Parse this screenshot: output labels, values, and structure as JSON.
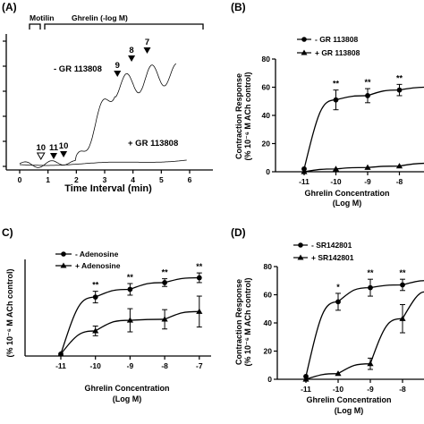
{
  "chart_data": [
    {
      "id": "A",
      "panel_label": "(A)",
      "type": "line",
      "xlabel": "Time Interval (min)",
      "x_ticks": [
        0,
        1,
        2,
        3,
        4,
        5,
        6
      ],
      "xlim": [
        -0.2,
        6.2
      ],
      "y_ticks_unlabeled": 6,
      "bar_labels": {
        "motilin": "Motilin",
        "ghrelin": "Ghrelin (-log M)"
      },
      "bar_ranges": {
        "motilin": [
          0.2,
          0.75
        ],
        "ghrelin": [
          1.05,
          6.0
        ]
      },
      "series": [
        {
          "name": "- GR 113808",
          "markers": [
            {
              "label": "9",
              "x": 3.45
            },
            {
              "label": "8",
              "x": 3.95
            },
            {
              "label": "7",
              "x": 4.5
            }
          ]
        },
        {
          "name": "+ GR 113808",
          "markers": [
            {
              "label": "10",
              "x": 0.75,
              "style": "open"
            },
            {
              "label": "11",
              "x": 1.2
            },
            {
              "label": "10",
              "x": 1.55
            }
          ]
        }
      ]
    },
    {
      "id": "B",
      "panel_label": "(B)",
      "type": "line",
      "ylabel": "Contraction Response",
      "ylabel2": "(% 10⁻⁶ M ACh control)",
      "xlabel": "Ghrelin Concentration",
      "xlabel2": "(Log M)",
      "x_ticks": [
        "-11",
        "-10",
        "-9",
        "-8"
      ],
      "y_ticks": [
        0,
        20,
        40,
        60,
        80
      ],
      "ylim": [
        0,
        80
      ],
      "x": [
        -11,
        -10,
        -9,
        -8
      ],
      "series": [
        {
          "name": "- GR 113808",
          "marker": "circle",
          "values": [
            2,
            51,
            54,
            58
          ],
          "errors": [
            0,
            7,
            5,
            4
          ],
          "sig": [
            "",
            "**",
            "**",
            "**"
          ]
        },
        {
          "name": "+ GR 113808",
          "marker": "triangle",
          "values": [
            0,
            2,
            3,
            4
          ],
          "errors": [
            0,
            0,
            0,
            0
          ],
          "sig": [
            "",
            "",
            "",
            ""
          ]
        }
      ]
    },
    {
      "id": "C",
      "panel_label": "C)",
      "type": "line",
      "ylabel": "(% 10⁻⁶ M ACh control)",
      "xlabel": "Ghrelin Concentration",
      "xlabel2": "(Log M)",
      "x_ticks": [
        "-11",
        "-10",
        "-9",
        "-8",
        "-7"
      ],
      "ylim": [
        0,
        100
      ],
      "x": [
        -11,
        -10,
        -9,
        -8,
        -7
      ],
      "series": [
        {
          "name": "- Adenosine",
          "marker": "circle",
          "values": [
            2,
            61,
            69,
            76,
            81
          ],
          "errors": [
            0,
            6,
            6,
            4,
            5
          ],
          "sig": [
            "",
            "**",
            "**",
            "**",
            "**"
          ]
        },
        {
          "name": "+ Adenosine",
          "marker": "triangle",
          "values": [
            2,
            26,
            37,
            38,
            46
          ],
          "errors": [
            0,
            5,
            12,
            10,
            16
          ],
          "sig": [
            "",
            "",
            "",
            "",
            ""
          ]
        }
      ]
    },
    {
      "id": "D",
      "panel_label": "(D)",
      "type": "line",
      "ylabel": "Contraction Response",
      "ylabel2": "(% 10⁻⁶ M ACh control)",
      "xlabel": "Ghrelin Concentration",
      "xlabel2": "(Log M)",
      "x_ticks": [
        "-11",
        "-10",
        "-9",
        "-8"
      ],
      "y_ticks": [
        0,
        20,
        40,
        60,
        80
      ],
      "ylim": [
        0,
        80
      ],
      "x": [
        -11,
        -10,
        -9,
        -8
      ],
      "series": [
        {
          "name": "- SR142801",
          "marker": "circle",
          "values": [
            2,
            55,
            65,
            67
          ],
          "errors": [
            0,
            6,
            6,
            4
          ],
          "sig": [
            "",
            "*",
            "**",
            "**"
          ]
        },
        {
          "name": "+ SR142801",
          "marker": "triangle",
          "values": [
            0,
            4,
            11,
            43
          ],
          "errors": [
            0,
            0,
            4,
            10
          ],
          "sig": [
            "",
            "",
            "",
            ""
          ]
        }
      ]
    }
  ]
}
